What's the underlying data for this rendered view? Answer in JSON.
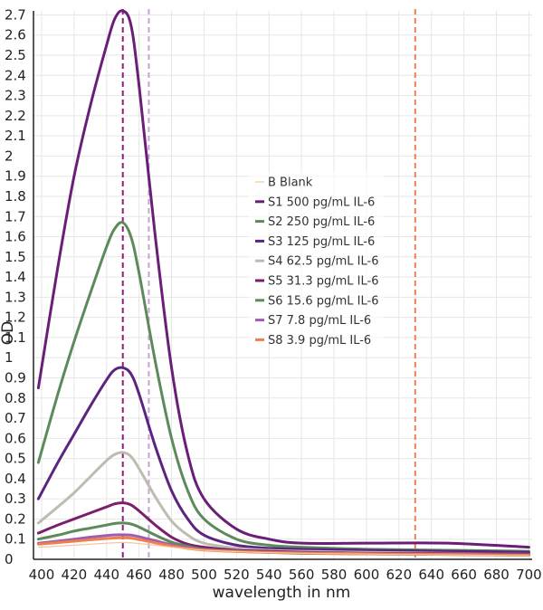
{
  "chart_data": {
    "type": "line",
    "title": "",
    "xlabel": "wavelength in nm",
    "ylabel": "OD",
    "xlim": [
      395,
      702
    ],
    "ylim": [
      0,
      2.72
    ],
    "x_ticks": [
      400,
      420,
      440,
      460,
      480,
      500,
      520,
      540,
      560,
      580,
      600,
      620,
      640,
      660,
      680,
      700
    ],
    "y_ticks": [
      0,
      0.1,
      0.2,
      0.3,
      0.4,
      0.5,
      0.6,
      0.7,
      0.8,
      0.9,
      1,
      1.1,
      1.2,
      1.3,
      1.4,
      1.5,
      1.6,
      1.7,
      1.8,
      1.9,
      2,
      2.1,
      2.2,
      2.3,
      2.4,
      2.5,
      2.6,
      2.7
    ],
    "grid": true,
    "legend_position": "center-right",
    "reference_lines": [
      {
        "x": 450,
        "color": "#8b1f78"
      },
      {
        "x": 466,
        "color": "#c9a3d3"
      },
      {
        "x": 630,
        "color": "#ec7f4f"
      }
    ],
    "x": [
      398,
      410,
      420,
      430,
      440,
      445,
      450,
      455,
      460,
      470,
      480,
      490,
      500,
      520,
      540,
      560,
      600,
      650,
      700
    ],
    "series": [
      {
        "name": "B Blank",
        "color": "#f3c6a0",
        "width": 1.2,
        "values": [
          0.06,
          0.065,
          0.07,
          0.075,
          0.08,
          0.082,
          0.083,
          0.082,
          0.078,
          0.07,
          0.06,
          0.052,
          0.045,
          0.038,
          0.033,
          0.03,
          0.026,
          0.022,
          0.018
        ]
      },
      {
        "name": "S1 500 pg/mL IL-6",
        "color": "#6a1e78",
        "width": 3,
        "values": [
          0.85,
          1.45,
          1.9,
          2.25,
          2.55,
          2.68,
          2.72,
          2.65,
          2.35,
          1.6,
          0.95,
          0.52,
          0.3,
          0.15,
          0.1,
          0.08,
          0.08,
          0.08,
          0.06
        ]
      },
      {
        "name": "S2 250 pg/mL IL-6",
        "color": "#5d8a5a",
        "width": 3,
        "values": [
          0.48,
          0.82,
          1.08,
          1.32,
          1.55,
          1.64,
          1.67,
          1.6,
          1.42,
          0.98,
          0.6,
          0.34,
          0.2,
          0.1,
          0.07,
          0.06,
          0.05,
          0.045,
          0.04
        ]
      },
      {
        "name": "S3 125 pg/mL IL-6",
        "color": "#5b2480",
        "width": 3,
        "values": [
          0.3,
          0.48,
          0.62,
          0.76,
          0.89,
          0.94,
          0.95,
          0.92,
          0.82,
          0.56,
          0.34,
          0.2,
          0.12,
          0.07,
          0.055,
          0.05,
          0.045,
          0.04,
          0.035
        ]
      },
      {
        "name": "S4 62.5 pg/mL IL-6",
        "color": "#bcbcb0",
        "width": 3,
        "values": [
          0.18,
          0.26,
          0.33,
          0.41,
          0.49,
          0.52,
          0.53,
          0.51,
          0.45,
          0.31,
          0.19,
          0.12,
          0.08,
          0.055,
          0.045,
          0.04,
          0.035,
          0.03,
          0.025
        ]
      },
      {
        "name": "S5 31.3 pg/mL IL-6",
        "color": "#7a1f6e",
        "width": 3,
        "values": [
          0.13,
          0.17,
          0.2,
          0.23,
          0.26,
          0.275,
          0.28,
          0.27,
          0.24,
          0.17,
          0.11,
          0.075,
          0.06,
          0.045,
          0.04,
          0.035,
          0.03,
          0.028,
          0.025
        ]
      },
      {
        "name": "S6 15.6 pg/mL IL-6",
        "color": "#5d8a5a",
        "width": 3,
        "values": [
          0.1,
          0.12,
          0.14,
          0.155,
          0.17,
          0.178,
          0.18,
          0.175,
          0.16,
          0.12,
          0.085,
          0.065,
          0.05,
          0.04,
          0.035,
          0.03,
          0.027,
          0.024,
          0.02
        ]
      },
      {
        "name": "S7 7.8 pg/mL IL-6",
        "color": "#a05cb0",
        "width": 3,
        "values": [
          0.08,
          0.09,
          0.1,
          0.11,
          0.118,
          0.121,
          0.122,
          0.12,
          0.112,
          0.092,
          0.072,
          0.058,
          0.048,
          0.04,
          0.035,
          0.032,
          0.028,
          0.025,
          0.022
        ]
      },
      {
        "name": "S8 3.9 pg/mL IL-6",
        "color": "#ec7f4f",
        "width": 3,
        "values": [
          0.075,
          0.083,
          0.09,
          0.097,
          0.103,
          0.106,
          0.107,
          0.105,
          0.098,
          0.082,
          0.066,
          0.054,
          0.046,
          0.039,
          0.034,
          0.031,
          0.027,
          0.024,
          0.021
        ]
      }
    ]
  }
}
